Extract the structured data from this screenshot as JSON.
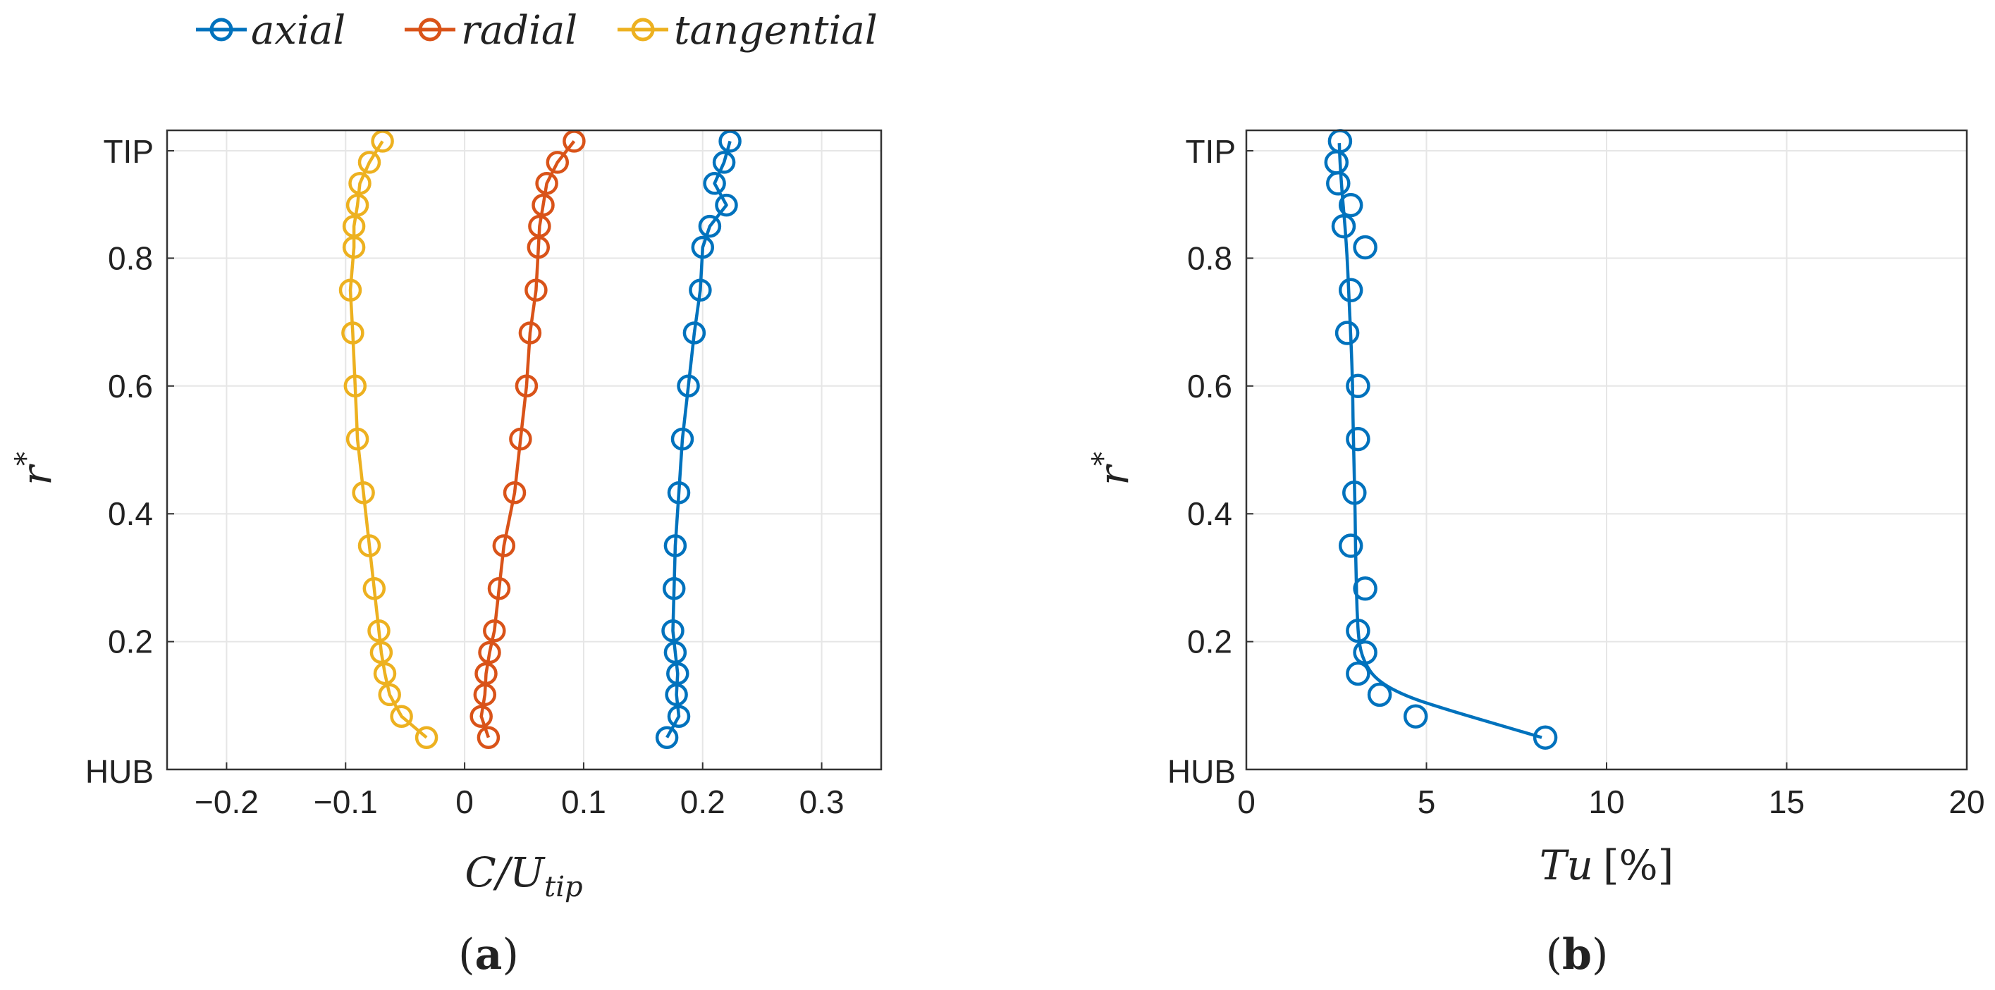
{
  "legend": [
    {
      "key": "axial",
      "label": "axial",
      "color": "#0072BD"
    },
    {
      "key": "radial",
      "label": "radial",
      "color": "#D95319"
    },
    {
      "key": "tangential",
      "label": "tangential",
      "color": "#EDB120"
    }
  ],
  "chart_data": [
    {
      "type": "line",
      "panel_label": "a",
      "xlabel": "C/U",
      "xlabel_sub": "tip",
      "ylabel": "r",
      "ylabel_sup": "*",
      "xlim": [
        -0.25,
        0.35
      ],
      "ylim": [
        0,
        1.0
      ],
      "xticks": [
        -0.2,
        -0.1,
        0,
        0.1,
        0.2,
        0.3
      ],
      "xtick_labels": [
        "−0.2",
        "−0.1",
        "0",
        "0.1",
        "0.2",
        "0.3"
      ],
      "yticks": [
        0.2,
        0.4,
        0.6,
        0.8
      ],
      "ytick_labels": [
        "0.2",
        "0.4",
        "0.6",
        "0.8"
      ],
      "y_end_labels": {
        "bottom": "HUB",
        "top": "TIP"
      },
      "grid": true,
      "marker": "circle",
      "series": [
        {
          "name": "axial",
          "color": "#0072BD",
          "points": [
            [
              0.17,
              0.05
            ],
            [
              0.18,
              0.083
            ],
            [
              0.178,
              0.117
            ],
            [
              0.179,
              0.15
            ],
            [
              0.177,
              0.183
            ],
            [
              0.175,
              0.217
            ],
            [
              0.176,
              0.283
            ],
            [
              0.177,
              0.35
            ],
            [
              0.18,
              0.433
            ],
            [
              0.183,
              0.517
            ],
            [
              0.188,
              0.6
            ],
            [
              0.193,
              0.683
            ],
            [
              0.198,
              0.75
            ],
            [
              0.2,
              0.817
            ],
            [
              0.206,
              0.85
            ],
            [
              0.22,
              0.883
            ],
            [
              0.21,
              0.917
            ],
            [
              0.218,
              0.95
            ],
            [
              0.223,
              0.983
            ]
          ]
        },
        {
          "name": "radial",
          "color": "#D95319",
          "points": [
            [
              0.02,
              0.05
            ],
            [
              0.014,
              0.083
            ],
            [
              0.017,
              0.117
            ],
            [
              0.018,
              0.15
            ],
            [
              0.021,
              0.183
            ],
            [
              0.025,
              0.217
            ],
            [
              0.029,
              0.283
            ],
            [
              0.033,
              0.35
            ],
            [
              0.042,
              0.433
            ],
            [
              0.047,
              0.517
            ],
            [
              0.052,
              0.6
            ],
            [
              0.055,
              0.683
            ],
            [
              0.06,
              0.75
            ],
            [
              0.062,
              0.817
            ],
            [
              0.063,
              0.85
            ],
            [
              0.066,
              0.883
            ],
            [
              0.069,
              0.917
            ],
            [
              0.078,
              0.95
            ],
            [
              0.092,
              0.983
            ]
          ]
        },
        {
          "name": "tangential",
          "color": "#EDB120",
          "points": [
            [
              -0.032,
              0.05
            ],
            [
              -0.053,
              0.083
            ],
            [
              -0.063,
              0.117
            ],
            [
              -0.067,
              0.15
            ],
            [
              -0.07,
              0.183
            ],
            [
              -0.072,
              0.217
            ],
            [
              -0.076,
              0.283
            ],
            [
              -0.08,
              0.35
            ],
            [
              -0.085,
              0.433
            ],
            [
              -0.09,
              0.517
            ],
            [
              -0.092,
              0.6
            ],
            [
              -0.094,
              0.683
            ],
            [
              -0.096,
              0.75
            ],
            [
              -0.093,
              0.817
            ],
            [
              -0.093,
              0.85
            ],
            [
              -0.09,
              0.883
            ],
            [
              -0.088,
              0.917
            ],
            [
              -0.08,
              0.95
            ],
            [
              -0.069,
              0.983
            ]
          ]
        }
      ]
    },
    {
      "type": "line",
      "panel_label": "b",
      "xlabel": "Tu",
      "xlabel_unit": "[%]",
      "ylabel": "r",
      "ylabel_sup": "*",
      "xlim": [
        0,
        20
      ],
      "ylim": [
        0,
        1.0
      ],
      "xticks": [
        0,
        5,
        10,
        15,
        20
      ],
      "xtick_labels": [
        "0",
        "5",
        "10",
        "15",
        "20"
      ],
      "yticks": [
        0.2,
        0.4,
        0.6,
        0.8
      ],
      "ytick_labels": [
        "0.2",
        "0.4",
        "0.6",
        "0.8"
      ],
      "y_end_labels": {
        "bottom": "HUB",
        "top": "TIP"
      },
      "grid": true,
      "series": [
        {
          "name": "Tu markers",
          "color": "#0072BD",
          "style": "markers",
          "points": [
            [
              8.3,
              0.05
            ],
            [
              4.7,
              0.083
            ],
            [
              3.7,
              0.117
            ],
            [
              3.1,
              0.15
            ],
            [
              3.3,
              0.183
            ],
            [
              3.1,
              0.217
            ],
            [
              3.3,
              0.283
            ],
            [
              2.9,
              0.35
            ],
            [
              3.0,
              0.433
            ],
            [
              3.1,
              0.517
            ],
            [
              3.1,
              0.6
            ],
            [
              2.8,
              0.683
            ],
            [
              2.9,
              0.75
            ],
            [
              3.3,
              0.817
            ],
            [
              2.7,
              0.85
            ],
            [
              2.9,
              0.883
            ],
            [
              2.55,
              0.917
            ],
            [
              2.5,
              0.95
            ],
            [
              2.6,
              0.983
            ]
          ]
        },
        {
          "name": "Tu curve",
          "color": "#0072BD",
          "style": "line",
          "points": [
            [
              8.2,
              0.05
            ],
            [
              7.0,
              0.07
            ],
            [
              5.6,
              0.093
            ],
            [
              4.4,
              0.115
            ],
            [
              3.6,
              0.14
            ],
            [
              3.25,
              0.17
            ],
            [
              3.12,
              0.2
            ],
            [
              3.07,
              0.25
            ],
            [
              3.05,
              0.3
            ],
            [
              3.03,
              0.35
            ],
            [
              3.02,
              0.4
            ],
            [
              3.0,
              0.45
            ],
            [
              2.98,
              0.5
            ],
            [
              2.96,
              0.55
            ],
            [
              2.95,
              0.6
            ],
            [
              2.92,
              0.65
            ],
            [
              2.88,
              0.7
            ],
            [
              2.84,
              0.75
            ],
            [
              2.8,
              0.8
            ],
            [
              2.74,
              0.85
            ],
            [
              2.66,
              0.9
            ],
            [
              2.6,
              0.95
            ],
            [
              2.58,
              0.98
            ]
          ]
        }
      ]
    }
  ]
}
